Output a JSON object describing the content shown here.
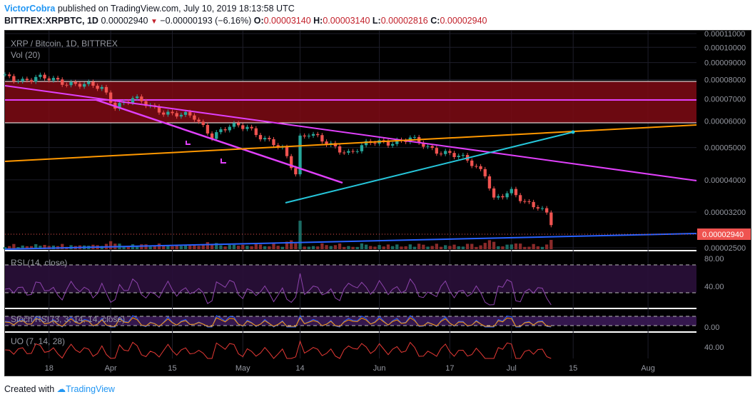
{
  "header": {
    "author": "VictorCobra",
    "published": "published on TradingView.com, July 10, 2019 18:13:58 UTC",
    "symbol": "BITTREX:XRPBTC, 1D",
    "last": "0.00002940",
    "change": "−0.00000193 (−6.16%)",
    "o_label": "O:",
    "o_value": "0.00003140",
    "h_label": "H:",
    "h_value": "0.00003140",
    "l_label": "L:",
    "l_value": "0.00002816",
    "c_label": "C:",
    "c_value": "0.00002940"
  },
  "main": {
    "title": "XRP / Bitcoin, 1D, BITTREX",
    "vol_label": "Vol (20)",
    "price_ticks": [
      "0.00011000",
      "0.00010000",
      "0.00009000",
      "0.00008000",
      "0.00007000",
      "0.00006000",
      "0.00005000",
      "0.00004000",
      "0.00003200",
      "0.00002500"
    ],
    "last_price_label": "0.00002940"
  },
  "rsi": {
    "label": "RSI (14, close)",
    "ticks": [
      "80.00",
      "40.00"
    ]
  },
  "stoch": {
    "label": "Stoch RSI (3, 3, 14, 14, close)",
    "ticks": [
      "0.00"
    ]
  },
  "uo": {
    "label": "UO (7, 14, 28)",
    "ticks": [
      "40.00"
    ]
  },
  "x_ticks": [
    "18",
    "Apr",
    "15",
    "May",
    "14",
    "Jun",
    "17",
    "Jul",
    "15",
    "Aug"
  ],
  "footer": {
    "created_with": "Created with",
    "brand": "TradingView"
  },
  "colors": {
    "up": "#26a69a",
    "down": "#ef5350",
    "magenta": "#e040fb",
    "orange": "#ff9800",
    "cyan": "#26c6da",
    "blue": "#2962ff",
    "zone": "#7f0a14"
  },
  "chart_data": {
    "type": "candlestick",
    "series_name": "BITTREX:XRPBTC, 1D",
    "x_range": [
      "2019-03-08",
      "2019-08-12"
    ],
    "y_scale": "log",
    "ylim": [
      2.5e-05,
      0.00011
    ],
    "closes_approx": [
      [
        "2019-03-08",
        8.1e-05
      ],
      [
        "2019-03-12",
        8e-05
      ],
      [
        "2019-03-15",
        8.12e-05
      ],
      [
        "2019-03-20",
        7.9e-05
      ],
      [
        "2019-03-25",
        7.78e-05
      ],
      [
        "2019-03-30",
        7.5e-05
      ],
      [
        "2019-04-02",
        6.7e-05
      ],
      [
        "2019-04-06",
        7e-05
      ],
      [
        "2019-04-10",
        6.65e-05
      ],
      [
        "2019-04-15",
        6.3e-05
      ],
      [
        "2019-04-20",
        6.15e-05
      ],
      [
        "2019-04-24",
        5.45e-05
      ],
      [
        "2019-04-28",
        5.75e-05
      ],
      [
        "2019-05-02",
        5.8e-05
      ],
      [
        "2019-05-06",
        5.3e-05
      ],
      [
        "2019-05-10",
        4.9e-05
      ],
      [
        "2019-05-13",
        4.2e-05
      ],
      [
        "2019-05-14",
        5.4e-05
      ],
      [
        "2019-05-16",
        5.55e-05
      ],
      [
        "2019-05-20",
        5.1e-05
      ],
      [
        "2019-05-25",
        4.85e-05
      ],
      [
        "2019-05-30",
        5.15e-05
      ],
      [
        "2019-06-03",
        5.2e-05
      ],
      [
        "2019-06-08",
        5.3e-05
      ],
      [
        "2019-06-12",
        5e-05
      ],
      [
        "2019-06-17",
        4.8e-05
      ],
      [
        "2019-06-21",
        4.55e-05
      ],
      [
        "2019-06-25",
        4.2e-05
      ],
      [
        "2019-06-27",
        3.5e-05
      ],
      [
        "2019-07-01",
        3.65e-05
      ],
      [
        "2019-07-04",
        3.45e-05
      ],
      [
        "2019-07-07",
        3.35e-05
      ],
      [
        "2019-07-09",
        3.14e-05
      ],
      [
        "2019-07-10",
        2.94e-05
      ]
    ],
    "indicators": [
      "Vol (20)",
      "RSI (14, close)",
      "Stoch RSI (3, 3, 14, 14, close)",
      "UO (7, 14, 28)"
    ]
  }
}
